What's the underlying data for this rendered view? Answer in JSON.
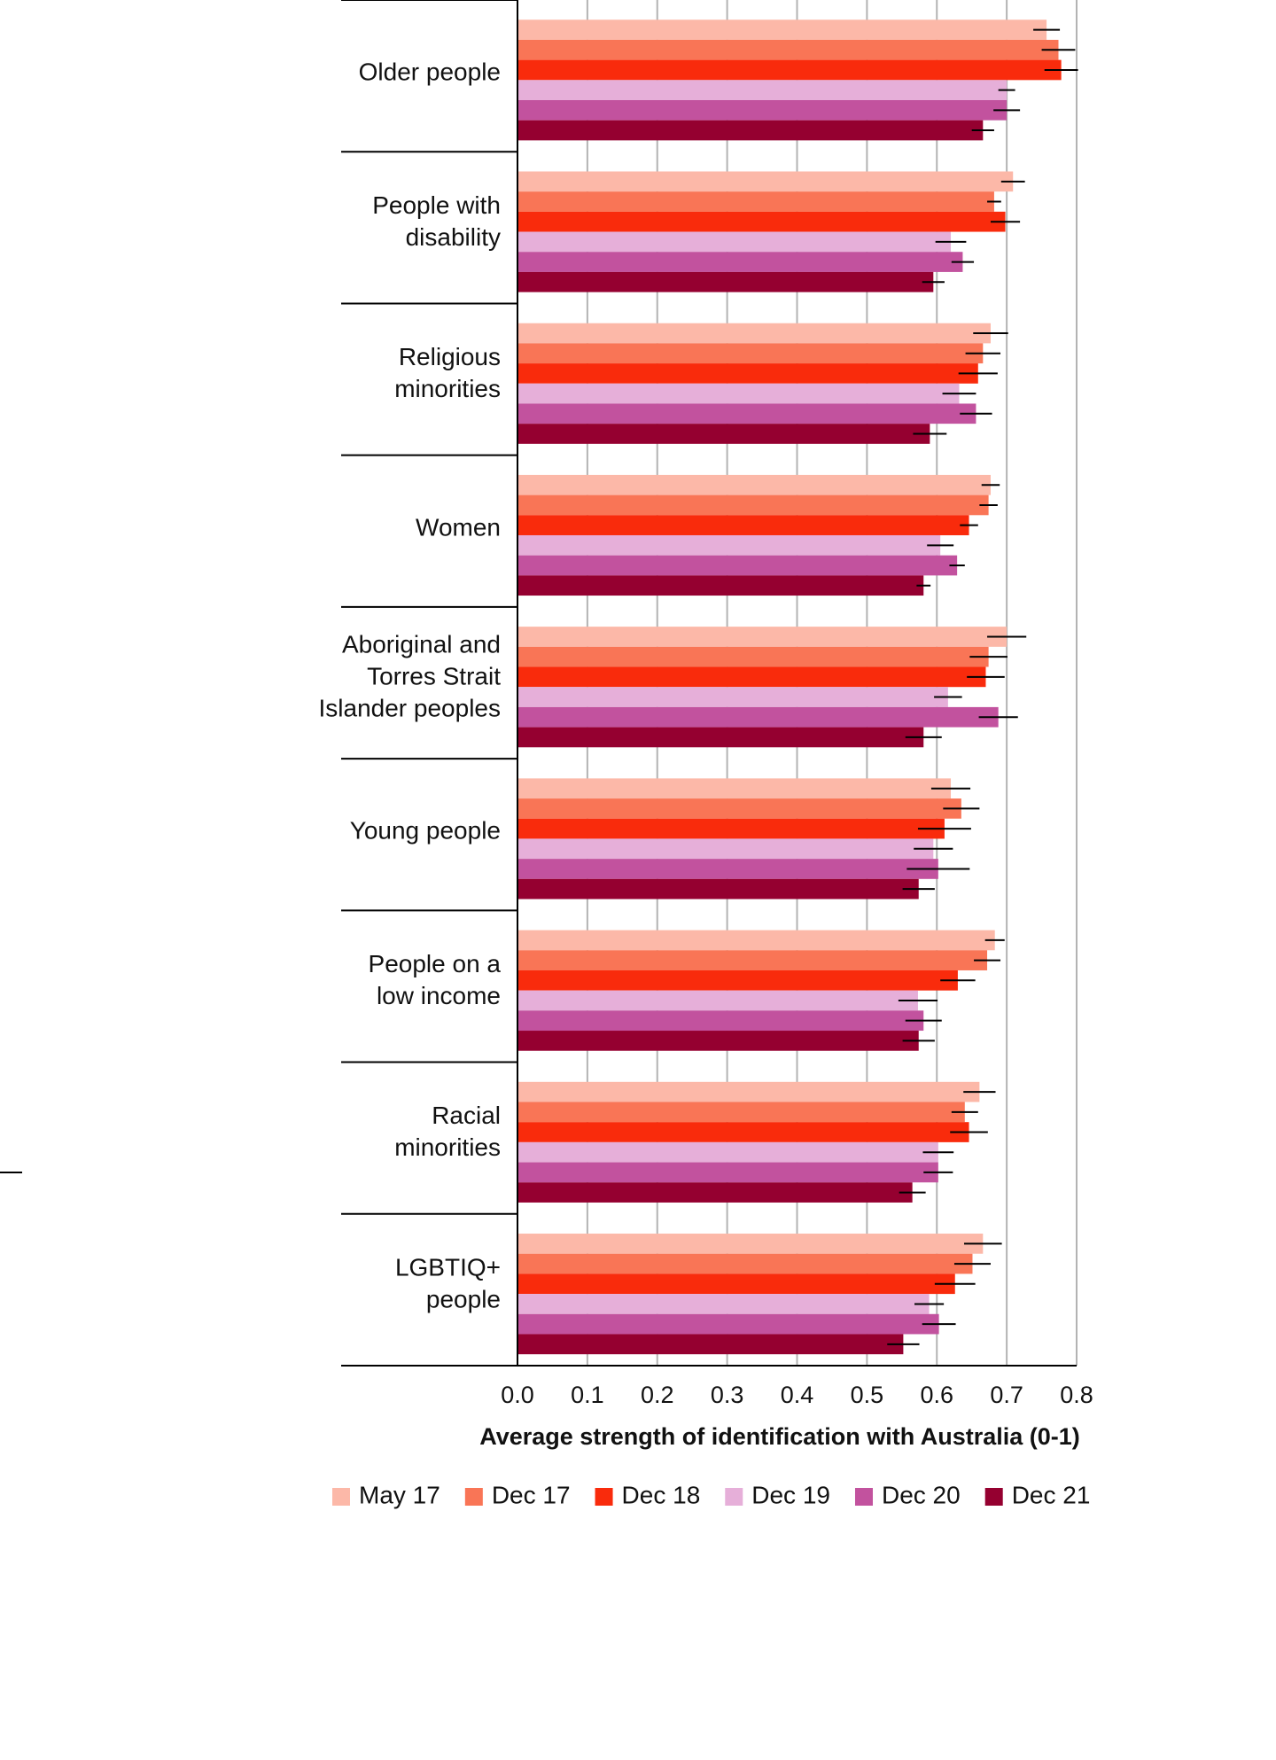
{
  "chart_data": {
    "type": "hbar",
    "x_label": "Average strength of identification with Australia (0-1)",
    "categories": [
      "Older people",
      "People with\ndisability",
      "Religious\nminorities",
      "Women",
      "Aboriginal and\nTorres Strait\nIslander peoples",
      "Young people",
      "People on a\nlow income",
      "Racial\nminorities",
      "LGBTIQ+\npeople"
    ],
    "series": [
      {
        "name": "May 17",
        "color": "#fcb8a8",
        "values": [
          0.757,
          0.709,
          0.677,
          0.677,
          0.7,
          0.62,
          0.683,
          0.661,
          0.666
        ],
        "errors": [
          0.019,
          0.017,
          0.025,
          0.013,
          0.028,
          0.028,
          0.014,
          0.023,
          0.027
        ]
      },
      {
        "name": "Dec 17",
        "color": "#f97556",
        "values": [
          0.774,
          0.682,
          0.666,
          0.674,
          0.674,
          0.635,
          0.672,
          0.64,
          0.651
        ],
        "errors": [
          0.024,
          0.01,
          0.025,
          0.013,
          0.027,
          0.026,
          0.019,
          0.019,
          0.026
        ]
      },
      {
        "name": "Dec 18",
        "color": "#f92b0c",
        "values": [
          0.778,
          0.698,
          0.659,
          0.646,
          0.67,
          0.611,
          0.63,
          0.646,
          0.626
        ],
        "errors": [
          0.024,
          0.021,
          0.028,
          0.013,
          0.027,
          0.038,
          0.025,
          0.027,
          0.029
        ]
      },
      {
        "name": "Dec 19",
        "color": "#e6afd9",
        "values": [
          0.7,
          0.62,
          0.632,
          0.605,
          0.616,
          0.595,
          0.573,
          0.602,
          0.589
        ],
        "errors": [
          0.012,
          0.022,
          0.024,
          0.019,
          0.02,
          0.028,
          0.028,
          0.022,
          0.021
        ]
      },
      {
        "name": "Dec 20",
        "color": "#c2529e",
        "values": [
          0.7,
          0.637,
          0.656,
          0.629,
          0.688,
          0.602,
          0.581,
          0.602,
          0.603
        ],
        "errors": [
          0.019,
          0.016,
          0.023,
          0.011,
          0.028,
          0.045,
          0.026,
          0.021,
          0.024
        ]
      },
      {
        "name": "Dec 21",
        "color": "#950030",
        "values": [
          0.666,
          0.595,
          0.59,
          0.581,
          0.581,
          0.574,
          0.574,
          0.565,
          0.552
        ],
        "errors": [
          0.016,
          0.016,
          0.024,
          0.01,
          0.026,
          0.023,
          0.023,
          0.019,
          0.023
        ]
      }
    ],
    "xlim": [
      0,
      0.8
    ],
    "xticks": [
      {
        "value": 0,
        "label": "0.0"
      },
      0.1,
      0.2,
      0.3,
      0.4,
      0.5,
      0.6,
      0.7,
      0.8
    ],
    "grid": true,
    "legend": "bottom"
  }
}
